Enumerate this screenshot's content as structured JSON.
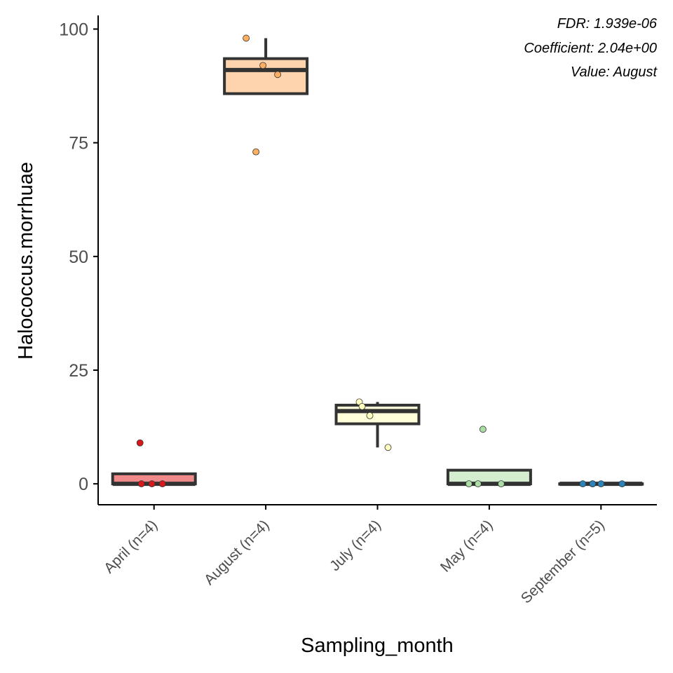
{
  "chart_data": {
    "type": "box",
    "title": "",
    "xlabel": "Sampling_month",
    "ylabel": "Halococcus.morrhuae",
    "ylim": [
      -4.6,
      103
    ],
    "yticks": [
      0,
      25,
      50,
      75,
      100
    ],
    "grid": false,
    "annotations": [
      "FDR: 1.939e-06",
      "Coefficient: 2.04e+00",
      "Value: August"
    ],
    "categories": [
      "April (n=4)",
      "August (n=4)",
      "July (n=4)",
      "May (n=4)",
      "September (n=5)"
    ],
    "boxes": [
      {
        "category": "April (n=4)",
        "q1": 0,
        "median": 0,
        "q3": 2.2,
        "whisker_low": 0,
        "whisker_high": 2.2,
        "fill": "#f08a8a",
        "point_color": "#d7191c",
        "points": [
          9,
          0,
          0,
          0
        ]
      },
      {
        "category": "August (n=4)",
        "q1": 85.8,
        "median": 91,
        "q3": 93.5,
        "whisker_low": 85.8,
        "whisker_high": 98,
        "fill": "#fdd4ae",
        "point_color": "#fdae61",
        "points": [
          98,
          92,
          90,
          73
        ]
      },
      {
        "category": "July (n=4)",
        "q1": 13.2,
        "median": 16,
        "q3": 17.3,
        "whisker_low": 8,
        "whisker_high": 18,
        "fill": "#ffffd9",
        "point_color": "#ffffbf",
        "points": [
          18,
          17,
          15,
          8
        ]
      },
      {
        "category": "May (n=4)",
        "q1": 0,
        "median": 0,
        "q3": 3,
        "whisker_low": 0,
        "whisker_high": 3,
        "fill": "#d4edcf",
        "point_color": "#abdda4",
        "points": [
          12,
          0,
          0,
          0
        ]
      },
      {
        "category": "September (n=5)",
        "q1": 0,
        "median": 0,
        "q3": 0,
        "whisker_low": 0,
        "whisker_high": 0,
        "fill": "#abd9e9",
        "point_color": "#2b83ba",
        "points": [
          0,
          0,
          0,
          0,
          0
        ]
      }
    ]
  }
}
